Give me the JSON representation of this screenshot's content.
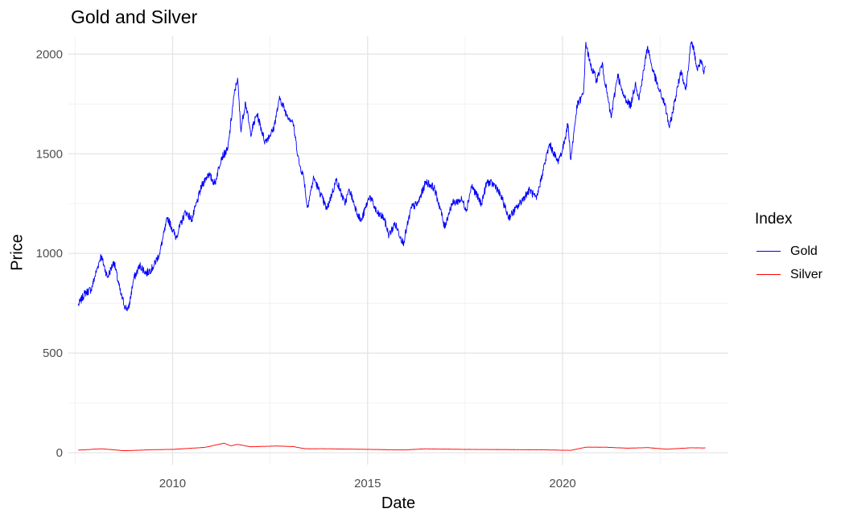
{
  "chart_data": {
    "type": "line",
    "title": "Gold and Silver",
    "xlabel": "Date",
    "ylabel": "Price",
    "legend_title": "Index",
    "legend_position": "right",
    "grid": true,
    "x_ticks": [
      "2010",
      "2015",
      "2020"
    ],
    "y_ticks": [
      "0",
      "500",
      "1000",
      "1500",
      "2000"
    ],
    "xlim": [
      "2007-05-01",
      "2024-04-01"
    ],
    "ylim": [
      -60,
      2090
    ],
    "series": [
      {
        "name": "Gold",
        "color": "#0000FF",
        "points": [
          [
            "2007-08-01",
            740
          ],
          [
            "2007-10-01",
            800
          ],
          [
            "2007-12-01",
            820
          ],
          [
            "2008-03-01",
            990
          ],
          [
            "2008-05-01",
            880
          ],
          [
            "2008-07-01",
            960
          ],
          [
            "2008-09-01",
            800
          ],
          [
            "2008-10-15",
            730
          ],
          [
            "2008-11-15",
            720
          ],
          [
            "2009-01-01",
            870
          ],
          [
            "2009-03-01",
            940
          ],
          [
            "2009-05-01",
            900
          ],
          [
            "2009-07-01",
            930
          ],
          [
            "2009-09-01",
            1000
          ],
          [
            "2009-11-15",
            1180
          ],
          [
            "2010-02-01",
            1080
          ],
          [
            "2010-05-01",
            1210
          ],
          [
            "2010-07-01",
            1170
          ],
          [
            "2010-10-01",
            1340
          ],
          [
            "2010-12-01",
            1400
          ],
          [
            "2011-02-01",
            1350
          ],
          [
            "2011-04-01",
            1480
          ],
          [
            "2011-06-01",
            1520
          ],
          [
            "2011-08-01",
            1800
          ],
          [
            "2011-09-01",
            1880
          ],
          [
            "2011-10-01",
            1620
          ],
          [
            "2011-11-15",
            1760
          ],
          [
            "2012-01-01",
            1600
          ],
          [
            "2012-03-01",
            1700
          ],
          [
            "2012-05-15",
            1560
          ],
          [
            "2012-08-01",
            1620
          ],
          [
            "2012-10-01",
            1780
          ],
          [
            "2012-12-01",
            1700
          ],
          [
            "2013-02-01",
            1660
          ],
          [
            "2013-04-01",
            1450
          ],
          [
            "2013-05-15",
            1380
          ],
          [
            "2013-06-15",
            1230
          ],
          [
            "2013-08-15",
            1380
          ],
          [
            "2013-10-01",
            1320
          ],
          [
            "2013-12-15",
            1220
          ],
          [
            "2014-03-15",
            1370
          ],
          [
            "2014-06-01",
            1250
          ],
          [
            "2014-07-15",
            1320
          ],
          [
            "2014-09-15",
            1220
          ],
          [
            "2014-11-01",
            1160
          ],
          [
            "2015-01-20",
            1290
          ],
          [
            "2015-04-01",
            1200
          ],
          [
            "2015-06-01",
            1180
          ],
          [
            "2015-07-20",
            1090
          ],
          [
            "2015-09-15",
            1150
          ],
          [
            "2015-12-01",
            1050
          ],
          [
            "2016-02-15",
            1230
          ],
          [
            "2016-04-15",
            1250
          ],
          [
            "2016-07-01",
            1360
          ],
          [
            "2016-09-15",
            1330
          ],
          [
            "2016-11-15",
            1220
          ],
          [
            "2016-12-20",
            1130
          ],
          [
            "2017-03-01",
            1250
          ],
          [
            "2017-06-01",
            1270
          ],
          [
            "2017-07-15",
            1220
          ],
          [
            "2017-09-01",
            1340
          ],
          [
            "2017-12-01",
            1250
          ],
          [
            "2018-01-25",
            1360
          ],
          [
            "2018-04-15",
            1340
          ],
          [
            "2018-06-15",
            1270
          ],
          [
            "2018-08-15",
            1180
          ],
          [
            "2018-11-01",
            1230
          ],
          [
            "2019-01-15",
            1290
          ],
          [
            "2019-03-01",
            1320
          ],
          [
            "2019-05-01",
            1270
          ],
          [
            "2019-06-25",
            1400
          ],
          [
            "2019-09-01",
            1550
          ],
          [
            "2019-11-15",
            1460
          ],
          [
            "2020-01-01",
            1520
          ],
          [
            "2020-02-20",
            1650
          ],
          [
            "2020-03-18",
            1470
          ],
          [
            "2020-05-15",
            1740
          ],
          [
            "2020-07-15",
            1800
          ],
          [
            "2020-08-06",
            2060
          ],
          [
            "2020-09-15",
            1950
          ],
          [
            "2020-11-15",
            1870
          ],
          [
            "2021-01-06",
            1950
          ],
          [
            "2021-03-31",
            1680
          ],
          [
            "2021-05-31",
            1900
          ],
          [
            "2021-07-15",
            1800
          ],
          [
            "2021-09-30",
            1740
          ],
          [
            "2021-11-15",
            1860
          ],
          [
            "2021-12-15",
            1770
          ],
          [
            "2022-03-08",
            2040
          ],
          [
            "2022-04-15",
            1940
          ],
          [
            "2022-06-15",
            1830
          ],
          [
            "2022-08-15",
            1750
          ],
          [
            "2022-09-28",
            1630
          ],
          [
            "2022-11-15",
            1760
          ],
          [
            "2023-01-15",
            1920
          ],
          [
            "2023-02-28",
            1820
          ],
          [
            "2023-04-13",
            2040
          ],
          [
            "2023-05-04",
            2050
          ],
          [
            "2023-06-15",
            1920
          ],
          [
            "2023-07-20",
            1970
          ],
          [
            "2023-08-15",
            1900
          ],
          [
            "2023-08-31",
            1940
          ]
        ]
      },
      {
        "name": "Silver",
        "color": "#FF0000",
        "points": [
          [
            "2007-08-01",
            13
          ],
          [
            "2008-03-01",
            20
          ],
          [
            "2008-10-15",
            10
          ],
          [
            "2009-06-01",
            15
          ],
          [
            "2010-01-01",
            17
          ],
          [
            "2010-11-01",
            27
          ],
          [
            "2011-04-28",
            48
          ],
          [
            "2011-07-01",
            35
          ],
          [
            "2011-09-01",
            42
          ],
          [
            "2012-01-01",
            30
          ],
          [
            "2012-09-01",
            34
          ],
          [
            "2013-02-01",
            31
          ],
          [
            "2013-06-01",
            20
          ],
          [
            "2014-01-01",
            20
          ],
          [
            "2015-01-01",
            17
          ],
          [
            "2015-12-01",
            14
          ],
          [
            "2016-07-01",
            20
          ],
          [
            "2017-06-01",
            17
          ],
          [
            "2018-06-01",
            16
          ],
          [
            "2019-06-01",
            15
          ],
          [
            "2020-03-18",
            12
          ],
          [
            "2020-08-06",
            28
          ],
          [
            "2021-02-01",
            28
          ],
          [
            "2021-09-01",
            23
          ],
          [
            "2022-03-08",
            26
          ],
          [
            "2022-09-01",
            18
          ],
          [
            "2023-04-15",
            25
          ],
          [
            "2023-08-31",
            24
          ]
        ]
      }
    ]
  }
}
